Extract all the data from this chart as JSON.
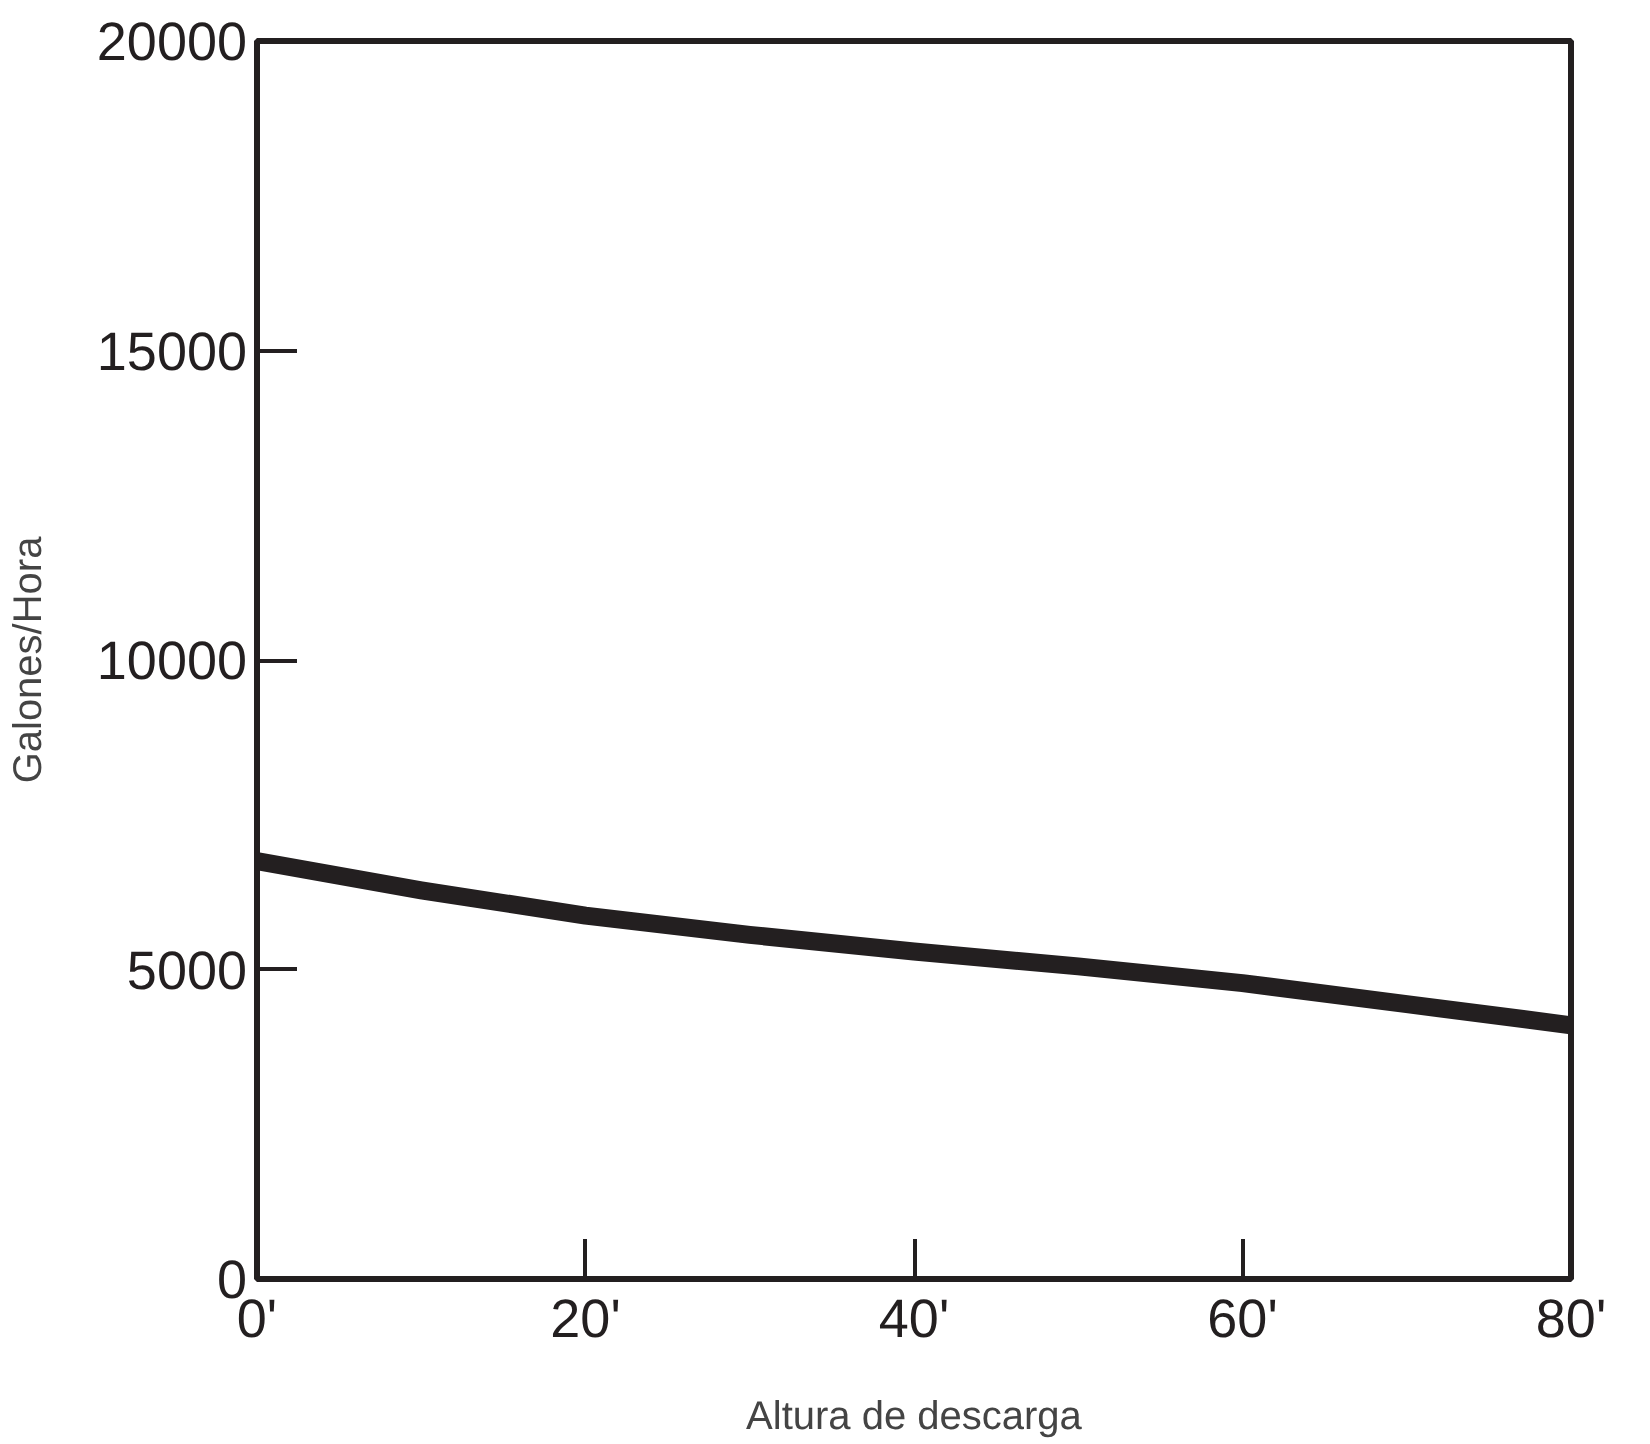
{
  "chart_data": {
    "type": "line",
    "xlabel": "Altura de descarga",
    "ylabel": "Galones/Hora",
    "x": [
      0,
      10,
      20,
      30,
      40,
      50,
      60,
      70,
      80
    ],
    "series": [
      {
        "color": "#231f20",
        "values": [
          6750,
          6280,
          5870,
          5560,
          5290,
          5050,
          4780,
          4440,
          4100
        ]
      }
    ],
    "xlim": [
      0,
      80
    ],
    "ylim": [
      0,
      20000
    ],
    "xticks": [
      {
        "value": 0,
        "label": "0'"
      },
      {
        "value": 20,
        "label": "20'"
      },
      {
        "value": 40,
        "label": "40'"
      },
      {
        "value": 60,
        "label": "60'"
      },
      {
        "value": 80,
        "label": "80'"
      }
    ],
    "yticks": [
      0,
      5000,
      10000,
      15000,
      20000
    ],
    "grid": false,
    "marker": "none",
    "line_style": "solid"
  }
}
